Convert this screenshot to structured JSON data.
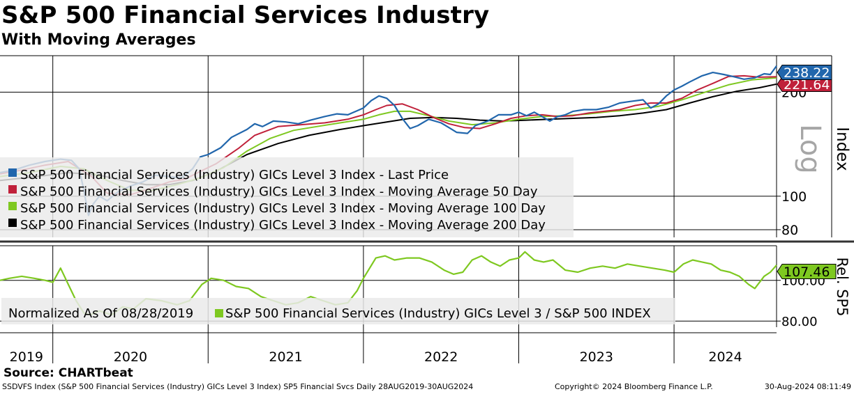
{
  "title": "S&P 500 Financial Services Industry",
  "subtitle": "With Moving Averages",
  "source": "Source: CHARTbeat",
  "footer": {
    "left": "SSDVFS Index (S&P 500 Financial Services (Industry) GICs Level 3 Index) SP5 Financial Svcs  Daily 28AUG2019-30AUG2024",
    "center": "Copyright© 2024 Bloomberg Finance L.P.",
    "right": "30-Aug-2024 08:11:49"
  },
  "colors": {
    "last": "#2166ac",
    "ma50": "#c0203a",
    "ma100": "#7ec820",
    "ma200": "#000000"
  },
  "chart_data": [
    {
      "type": "line",
      "yscale": "log",
      "ylabel": "Index",
      "scale_note": "Log",
      "ylim": [
        76,
        255
      ],
      "yticks": [
        {
          "value": 80,
          "label": "80"
        },
        {
          "value": 100,
          "label": "100"
        },
        {
          "value": 200,
          "label": "200"
        }
      ],
      "x_range": [
        2019.66,
        2024.66
      ],
      "year_labels": [
        "2019",
        "2020",
        "2021",
        "2022",
        "2023",
        "2024"
      ],
      "year_boundaries": [
        2020,
        2021,
        2022,
        2023,
        2024
      ],
      "last_values": [
        {
          "series": "last",
          "label": "238.22"
        },
        {
          "series": "ma50",
          "label": "221.64"
        }
      ],
      "legend": [
        {
          "key": "last",
          "label": "S&P 500 Financial Services (Industry) GICs Level 3 Index - Last Price"
        },
        {
          "key": "ma50",
          "label": "S&P 500 Financial Services (Industry) GICs Level 3 Index - Moving Average 50 Day"
        },
        {
          "key": "ma100",
          "label": "S&P 500 Financial Services (Industry) GICs Level 3 Index - Moving Average 100 Day"
        },
        {
          "key": "ma200",
          "label": "S&P 500 Financial Services (Industry) GICs Level 3 Index - Moving Average 200 Day"
        }
      ],
      "series": [
        {
          "key": "last",
          "x": [
            2019.66,
            2019.75,
            2019.85,
            2019.95,
            2020.05,
            2020.12,
            2020.17,
            2020.2,
            2020.23,
            2020.26,
            2020.3,
            2020.35,
            2020.42,
            2020.5,
            2020.58,
            2020.66,
            2020.75,
            2020.83,
            2020.9,
            2020.95,
            2021.0,
            2021.08,
            2021.15,
            2021.25,
            2021.3,
            2021.35,
            2021.42,
            2021.5,
            2021.58,
            2021.66,
            2021.75,
            2021.83,
            2021.9,
            2022.0,
            2022.05,
            2022.1,
            2022.15,
            2022.2,
            2022.25,
            2022.3,
            2022.35,
            2022.42,
            2022.5,
            2022.55,
            2022.6,
            2022.67,
            2022.72,
            2022.8,
            2022.87,
            2022.95,
            2023.0,
            2023.05,
            2023.1,
            2023.15,
            2023.2,
            2023.25,
            2023.3,
            2023.35,
            2023.42,
            2023.5,
            2023.58,
            2023.65,
            2023.72,
            2023.8,
            2023.85,
            2023.9,
            2023.95,
            2024.0,
            2024.05,
            2024.1,
            2024.18,
            2024.25,
            2024.32,
            2024.38,
            2024.45,
            2024.52,
            2024.58,
            2024.62,
            2024.66
          ],
          "y": [
            117,
            119,
            123,
            126,
            128,
            127,
            120,
            104,
            88,
            95,
            100,
            97,
            103,
            107,
            110,
            115,
            114,
            113,
            120,
            130,
            132,
            138,
            148,
            156,
            162,
            159,
            165,
            164,
            162,
            166,
            170,
            173,
            172,
            180,
            189,
            195,
            192,
            183,
            168,
            157,
            160,
            167,
            163,
            158,
            153,
            152,
            160,
            165,
            172,
            172,
            175,
            171,
            175,
            170,
            165,
            170,
            172,
            176,
            178,
            178,
            181,
            186,
            188,
            190,
            180,
            185,
            195,
            203,
            208,
            214,
            223,
            228,
            225,
            222,
            218,
            220,
            226,
            225,
            238.22
          ]
        },
        {
          "key": "ma50",
          "x": [
            2019.66,
            2019.8,
            2019.95,
            2020.1,
            2020.25,
            2020.35,
            2020.5,
            2020.62,
            2020.75,
            2020.85,
            2020.95,
            2021.05,
            2021.2,
            2021.3,
            2021.45,
            2021.6,
            2021.75,
            2021.9,
            2022.0,
            2022.08,
            2022.15,
            2022.25,
            2022.35,
            2022.45,
            2022.55,
            2022.65,
            2022.75,
            2022.85,
            2022.95,
            2023.05,
            2023.15,
            2023.25,
            2023.35,
            2023.45,
            2023.55,
            2023.65,
            2023.75,
            2023.85,
            2023.95,
            2024.05,
            2024.15,
            2024.25,
            2024.35,
            2024.45,
            2024.55,
            2024.66
          ],
          "y": [
            116,
            119,
            123,
            126,
            114,
            102,
            101,
            105,
            110,
            112,
            118,
            124,
            138,
            150,
            159,
            161,
            163,
            167,
            172,
            178,
            183,
            185,
            178,
            169,
            162,
            158,
            157,
            162,
            168,
            171,
            172,
            170,
            171,
            174,
            176,
            178,
            183,
            186,
            186,
            192,
            203,
            212,
            222,
            223,
            221,
            221.64
          ]
        },
        {
          "key": "ma100",
          "x": [
            2019.66,
            2019.85,
            2020.05,
            2020.2,
            2020.35,
            2020.5,
            2020.65,
            2020.8,
            2020.95,
            2021.1,
            2021.25,
            2021.4,
            2021.55,
            2021.7,
            2021.85,
            2022.0,
            2022.1,
            2022.2,
            2022.3,
            2022.42,
            2022.55,
            2022.7,
            2022.85,
            2023.0,
            2023.15,
            2023.3,
            2023.45,
            2023.6,
            2023.75,
            2023.9,
            2024.05,
            2024.2,
            2024.35,
            2024.5,
            2024.66
          ],
          "y": [
            114,
            117,
            122,
            120,
            111,
            104,
            104,
            108,
            113,
            121,
            135,
            147,
            155,
            159,
            163,
            167,
            172,
            176,
            176,
            171,
            165,
            161,
            163,
            167,
            170,
            171,
            173,
            176,
            178,
            182,
            190,
            200,
            210,
            217,
            220
          ]
        },
        {
          "key": "ma200",
          "x": [
            2019.66,
            2019.9,
            2020.1,
            2020.3,
            2020.45,
            2020.6,
            2020.75,
            2020.9,
            2021.05,
            2021.25,
            2021.45,
            2021.65,
            2021.85,
            2022.0,
            2022.15,
            2022.3,
            2022.45,
            2022.6,
            2022.75,
            2022.9,
            2023.05,
            2023.2,
            2023.35,
            2023.5,
            2023.65,
            2023.8,
            2023.95,
            2024.1,
            2024.25,
            2024.4,
            2024.55,
            2024.66
          ],
          "y": [
            111,
            114,
            117,
            115,
            111,
            108,
            108,
            111,
            118,
            132,
            142,
            150,
            156,
            160,
            164,
            168,
            169,
            168,
            166,
            165,
            166,
            167,
            168,
            169,
            171,
            174,
            178,
            186,
            194,
            201,
            206,
            211
          ]
        }
      ]
    },
    {
      "type": "line",
      "ylabel": "Rel. SP5",
      "ylim": [
        77,
        117
      ],
      "yticks": [
        {
          "value": 80,
          "label": "80.00"
        },
        {
          "value": 100,
          "label": "100.00"
        }
      ],
      "last_value_label": "107.46",
      "legend": {
        "prefix": "Normalized As Of 08/28/2019",
        "label": "S&P 500 Financial Services (Industry) GICs Level 3 / S&P 500 INDEX"
      },
      "series": [
        {
          "key": "rel",
          "x": [
            2019.66,
            2019.72,
            2019.8,
            2019.88,
            2019.95,
            2020.0,
            2020.05,
            2020.1,
            2020.15,
            2020.2,
            2020.24,
            2020.3,
            2020.38,
            2020.45,
            2020.52,
            2020.6,
            2020.7,
            2020.8,
            2020.88,
            2020.96,
            2021.02,
            2021.1,
            2021.18,
            2021.26,
            2021.34,
            2021.42,
            2021.5,
            2021.58,
            2021.66,
            2021.74,
            2021.82,
            2021.9,
            2021.96,
            2022.0,
            2022.04,
            2022.08,
            2022.14,
            2022.2,
            2022.28,
            2022.36,
            2022.44,
            2022.52,
            2022.58,
            2022.64,
            2022.7,
            2022.76,
            2022.82,
            2022.88,
            2022.94,
            2023.0,
            2023.04,
            2023.1,
            2023.16,
            2023.22,
            2023.3,
            2023.38,
            2023.46,
            2023.54,
            2023.62,
            2023.7,
            2023.78,
            2023.86,
            2023.94,
            2024.0,
            2024.06,
            2024.12,
            2024.18,
            2024.24,
            2024.3,
            2024.36,
            2024.42,
            2024.48,
            2024.52,
            2024.58,
            2024.62,
            2024.66
          ],
          "y": [
            100,
            101,
            102,
            101,
            100,
            99,
            106,
            98,
            90,
            84,
            83,
            85,
            83,
            87,
            86,
            91,
            90,
            88,
            90,
            98,
            101,
            100,
            97,
            96,
            92,
            90,
            88,
            89,
            92,
            90,
            88,
            89,
            95,
            101,
            106,
            111,
            112,
            110,
            111,
            111,
            109,
            105,
            103,
            104,
            110,
            112,
            109,
            107,
            110,
            111,
            114,
            110,
            109,
            110,
            105,
            104,
            106,
            107,
            106,
            108,
            107,
            106,
            105,
            104,
            108,
            110,
            109,
            108,
            105,
            104,
            102,
            98,
            96,
            102,
            104,
            107.46
          ]
        }
      ]
    }
  ]
}
